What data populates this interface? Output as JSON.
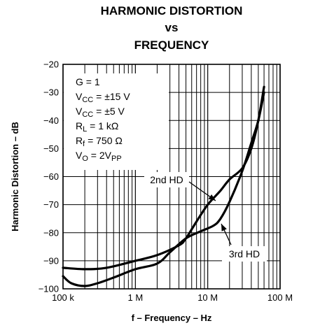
{
  "chart_data": {
    "type": "line",
    "title_lines": [
      "HARMONIC DISTORTION",
      "vs",
      "FREQUENCY"
    ],
    "xlabel": "f – Frequency – Hz",
    "ylabel": "Harmonic Distortion – dB",
    "x_scale": "log",
    "xlim": [
      100000,
      100000000
    ],
    "ylim": [
      -100,
      -20
    ],
    "x_ticks": [
      {
        "value": 100000,
        "label": "100 k"
      },
      {
        "value": 1000000,
        "label": "1 M"
      },
      {
        "value": 10000000,
        "label": "10 M"
      },
      {
        "value": 100000000,
        "label": "100 M"
      }
    ],
    "y_ticks": [
      {
        "value": -20,
        "label": "−20"
      },
      {
        "value": -30,
        "label": "−30"
      },
      {
        "value": -40,
        "label": "−40"
      },
      {
        "value": -50,
        "label": "−50"
      },
      {
        "value": -60,
        "label": "−60"
      },
      {
        "value": -70,
        "label": "−70"
      },
      {
        "value": -80,
        "label": "−80"
      },
      {
        "value": -90,
        "label": "−90"
      },
      {
        "value": -100,
        "label": "−100"
      }
    ],
    "grid": true,
    "conditions": [
      [
        {
          "t": "G = 1"
        }
      ],
      [
        {
          "t": "V"
        },
        {
          "t": "CC",
          "sub": true
        },
        {
          "t": " = ±15 V"
        }
      ],
      [
        {
          "t": "V"
        },
        {
          "t": "CC",
          "sub": true
        },
        {
          "t": " = ±5 V"
        }
      ],
      [
        {
          "t": "R"
        },
        {
          "t": "L",
          "sub": true
        },
        {
          "t": " = 1 kΩ"
        }
      ],
      [
        {
          "t": "R"
        },
        {
          "t": "f",
          "sub": true
        },
        {
          "t": " = 750 Ω"
        }
      ],
      [
        {
          "t": "V"
        },
        {
          "t": "O",
          "sub": true
        },
        {
          "t": " = 2V"
        },
        {
          "t": "PP",
          "sub": true
        }
      ]
    ],
    "series": [
      {
        "name": "2nd HD",
        "x": [
          100000,
          200000,
          400000,
          1000000,
          2000000,
          4000000,
          5000000,
          7000000,
          10000000,
          15000000,
          20000000,
          30000000,
          40000000,
          50000000,
          60000000
        ],
        "y": [
          -92.5,
          -93,
          -92.5,
          -90,
          -88,
          -84.5,
          -82,
          -76,
          -70,
          -65,
          -61,
          -57,
          -50,
          -40,
          -28
        ]
      },
      {
        "name": "3rd HD",
        "x": [
          100000,
          130000,
          200000,
          300000,
          500000,
          1000000,
          2000000,
          3000000,
          5000000,
          8000000,
          12000000,
          15000000,
          20000000,
          30000000,
          40000000,
          50000000,
          60000000
        ],
        "y": [
          -95.5,
          -98,
          -99,
          -98,
          -96,
          -93,
          -91,
          -87,
          -82,
          -79.5,
          -77.5,
          -75,
          -69,
          -58,
          -48,
          -40,
          -30
        ]
      }
    ],
    "annotations": [
      {
        "text": "2nd HD",
        "series": 0
      },
      {
        "text": "3rd HD",
        "series": 1
      }
    ]
  }
}
